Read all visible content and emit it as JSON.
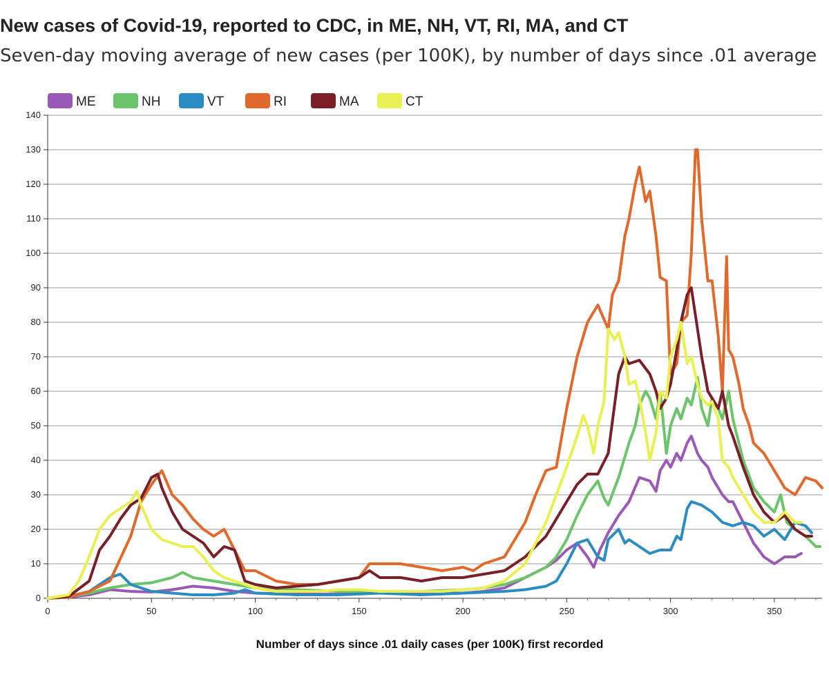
{
  "header": {
    "title": "New cases of Covid-19, reported to CDC, in ME, NH, VT, RI, MA, and CT",
    "subtitle": "Seven-day moving average of new cases (per 100K), by number of days since .01 average"
  },
  "chart_data": {
    "type": "line",
    "xlabel": "Number of days since .01 daily cases (per 100K) first recorded",
    "ylabel": "",
    "xlim": [
      0,
      373
    ],
    "ylim": [
      0,
      140
    ],
    "x_ticks": [
      0,
      50,
      100,
      150,
      200,
      250,
      300,
      350
    ],
    "y_ticks": [
      0,
      10,
      20,
      30,
      40,
      50,
      60,
      70,
      80,
      90,
      100,
      110,
      120,
      130,
      140
    ],
    "grid": "horizontal",
    "legend_position": "top-left",
    "series": [
      {
        "name": "ME",
        "color": "#9b59b6",
        "x": [
          0,
          10,
          20,
          30,
          40,
          50,
          60,
          70,
          80,
          90,
          100,
          120,
          140,
          160,
          180,
          200,
          210,
          220,
          230,
          240,
          245,
          250,
          255,
          260,
          263,
          266,
          270,
          275,
          280,
          285,
          290,
          293,
          295,
          298,
          300,
          303,
          305,
          308,
          310,
          313,
          315,
          318,
          320,
          323,
          325,
          328,
          330,
          335,
          340,
          345,
          350,
          355,
          360,
          363
        ],
        "values": [
          0,
          0.3,
          1,
          2.5,
          2,
          1.8,
          2.5,
          3.5,
          3,
          2,
          1.5,
          1.2,
          1.2,
          1.5,
          1.5,
          1.5,
          2,
          3,
          6,
          9,
          11,
          14,
          16,
          12,
          9,
          14,
          19,
          24,
          28,
          35,
          34,
          31,
          37,
          40,
          38,
          42,
          40,
          45,
          47,
          42,
          40,
          38,
          35,
          32,
          30,
          28,
          28,
          22,
          16,
          12,
          10,
          12,
          12,
          13
        ]
      },
      {
        "name": "NH",
        "color": "#6cc46a",
        "x": [
          0,
          10,
          20,
          30,
          40,
          50,
          60,
          65,
          70,
          80,
          90,
          100,
          120,
          140,
          160,
          180,
          200,
          210,
          220,
          230,
          240,
          245,
          250,
          255,
          260,
          265,
          268,
          270,
          275,
          280,
          283,
          285,
          288,
          290,
          293,
          295,
          298,
          300,
          303,
          305,
          308,
          310,
          313,
          315,
          318,
          320,
          323,
          325,
          328,
          330,
          335,
          340,
          345,
          350,
          353,
          356,
          360,
          365,
          370,
          372
        ],
        "values": [
          0,
          0.5,
          1.5,
          3,
          4,
          4.5,
          6,
          7.5,
          6,
          5,
          4,
          3,
          2.5,
          2,
          2,
          2,
          2.5,
          3,
          4,
          6,
          9,
          12,
          17,
          24,
          30,
          34,
          29,
          27,
          35,
          45,
          50,
          56,
          60,
          58,
          52,
          60,
          42,
          50,
          55,
          52,
          58,
          56,
          64,
          55,
          50,
          58,
          55,
          52,
          60,
          52,
          40,
          32,
          28,
          25,
          30,
          22,
          20,
          18,
          15,
          15
        ]
      },
      {
        "name": "VT",
        "color": "#2b8cc4",
        "x": [
          0,
          10,
          20,
          25,
          30,
          35,
          40,
          50,
          60,
          70,
          80,
          90,
          95,
          100,
          120,
          140,
          160,
          180,
          200,
          220,
          230,
          240,
          245,
          250,
          255,
          260,
          265,
          268,
          270,
          275,
          278,
          280,
          285,
          290,
          295,
          300,
          303,
          305,
          308,
          310,
          315,
          320,
          325,
          330,
          335,
          340,
          345,
          350,
          355,
          360,
          365,
          368
        ],
        "values": [
          0,
          0.5,
          2,
          4,
          6,
          7,
          4,
          2,
          1.5,
          1,
          1,
          1.5,
          2.5,
          1.5,
          1,
          1,
          1.5,
          1,
          1.5,
          2,
          2.5,
          3.5,
          5,
          10,
          16,
          17,
          12,
          11,
          17,
          20,
          16,
          17,
          15,
          13,
          14,
          14,
          18,
          17,
          26,
          28,
          27,
          25,
          22,
          21,
          22,
          21,
          18,
          20,
          17,
          22,
          21,
          19
        ]
      },
      {
        "name": "RI",
        "color": "#e0692b",
        "x": [
          0,
          10,
          20,
          30,
          40,
          45,
          50,
          55,
          60,
          65,
          70,
          75,
          80,
          85,
          90,
          95,
          100,
          110,
          120,
          130,
          140,
          150,
          155,
          160,
          170,
          180,
          190,
          200,
          205,
          210,
          220,
          225,
          230,
          235,
          240,
          245,
          250,
          255,
          260,
          265,
          270,
          272,
          275,
          278,
          280,
          283,
          285,
          288,
          290,
          293,
          295,
          298,
          300,
          303,
          305,
          308,
          310,
          312,
          313,
          315,
          318,
          320,
          323,
          325,
          327,
          328,
          330,
          333,
          335,
          338,
          340,
          345,
          350,
          355,
          360,
          365,
          370,
          373
        ],
        "values": [
          0,
          0.3,
          2,
          5,
          18,
          28,
          33,
          37,
          30,
          27,
          23,
          20,
          18,
          20,
          14,
          8,
          8,
          5,
          4,
          4,
          5,
          6,
          10,
          10,
          10,
          9,
          8,
          9,
          8,
          10,
          12,
          17,
          22,
          30,
          37,
          38,
          55,
          70,
          80,
          85,
          78,
          88,
          92,
          105,
          110,
          120,
          125,
          115,
          118,
          105,
          93,
          92,
          65,
          68,
          80,
          82,
          100,
          130,
          130,
          110,
          92,
          92,
          76,
          60,
          99,
          72,
          70,
          62,
          55,
          50,
          45,
          42,
          37,
          32,
          30,
          35,
          34,
          32
        ]
      },
      {
        "name": "MA",
        "color": "#7a1f27",
        "x": [
          0,
          10,
          20,
          25,
          30,
          35,
          40,
          45,
          50,
          53,
          55,
          60,
          65,
          70,
          75,
          80,
          85,
          90,
          95,
          100,
          110,
          120,
          130,
          140,
          150,
          155,
          160,
          170,
          180,
          190,
          200,
          210,
          220,
          230,
          240,
          245,
          250,
          255,
          260,
          265,
          270,
          275,
          278,
          280,
          285,
          290,
          293,
          295,
          298,
          300,
          303,
          305,
          308,
          310,
          313,
          315,
          318,
          320,
          323,
          325,
          328,
          330,
          335,
          340,
          345,
          350,
          355,
          360,
          365,
          368
        ],
        "values": [
          0,
          0.5,
          5,
          14,
          18,
          23,
          27,
          29,
          35,
          36,
          32,
          25,
          20,
          18,
          16,
          12,
          15,
          14,
          5,
          4,
          3,
          3.5,
          4,
          5,
          6,
          8,
          6,
          6,
          5,
          6,
          6,
          7,
          8,
          12,
          18,
          23,
          28,
          33,
          36,
          36,
          42,
          65,
          70,
          68,
          69,
          65,
          60,
          55,
          58,
          62,
          72,
          80,
          88,
          90,
          78,
          70,
          60,
          58,
          55,
          60,
          50,
          47,
          38,
          30,
          25,
          22,
          24,
          20,
          18,
          18
        ]
      },
      {
        "name": "CT",
        "color": "#e8f053",
        "x": [
          0,
          10,
          15,
          20,
          25,
          30,
          35,
          40,
          43,
          45,
          50,
          55,
          60,
          65,
          70,
          75,
          80,
          85,
          90,
          95,
          100,
          110,
          120,
          130,
          140,
          150,
          160,
          170,
          180,
          190,
          200,
          210,
          220,
          230,
          240,
          245,
          250,
          255,
          258,
          260,
          263,
          265,
          268,
          270,
          273,
          275,
          278,
          280,
          283,
          285,
          288,
          290,
          293,
          295,
          298,
          300,
          303,
          305,
          308,
          310,
          313,
          315,
          318,
          320,
          323,
          325,
          328,
          330,
          335,
          340,
          345,
          350,
          355,
          360,
          363
        ],
        "values": [
          0,
          1,
          5,
          12,
          20,
          24,
          26,
          28,
          31,
          27,
          20,
          17,
          16,
          15,
          15,
          12,
          8,
          6,
          5,
          4,
          3,
          2,
          2,
          2,
          2.5,
          2.5,
          2,
          2,
          2,
          2,
          2.5,
          3,
          5,
          10,
          22,
          30,
          38,
          47,
          53,
          50,
          42,
          50,
          57,
          78,
          75,
          77,
          70,
          62,
          63,
          58,
          48,
          40,
          48,
          60,
          58,
          70,
          75,
          80,
          68,
          70,
          62,
          58,
          56,
          57,
          52,
          40,
          38,
          35,
          30,
          25,
          22,
          22,
          25,
          22,
          22
        ]
      }
    ]
  }
}
